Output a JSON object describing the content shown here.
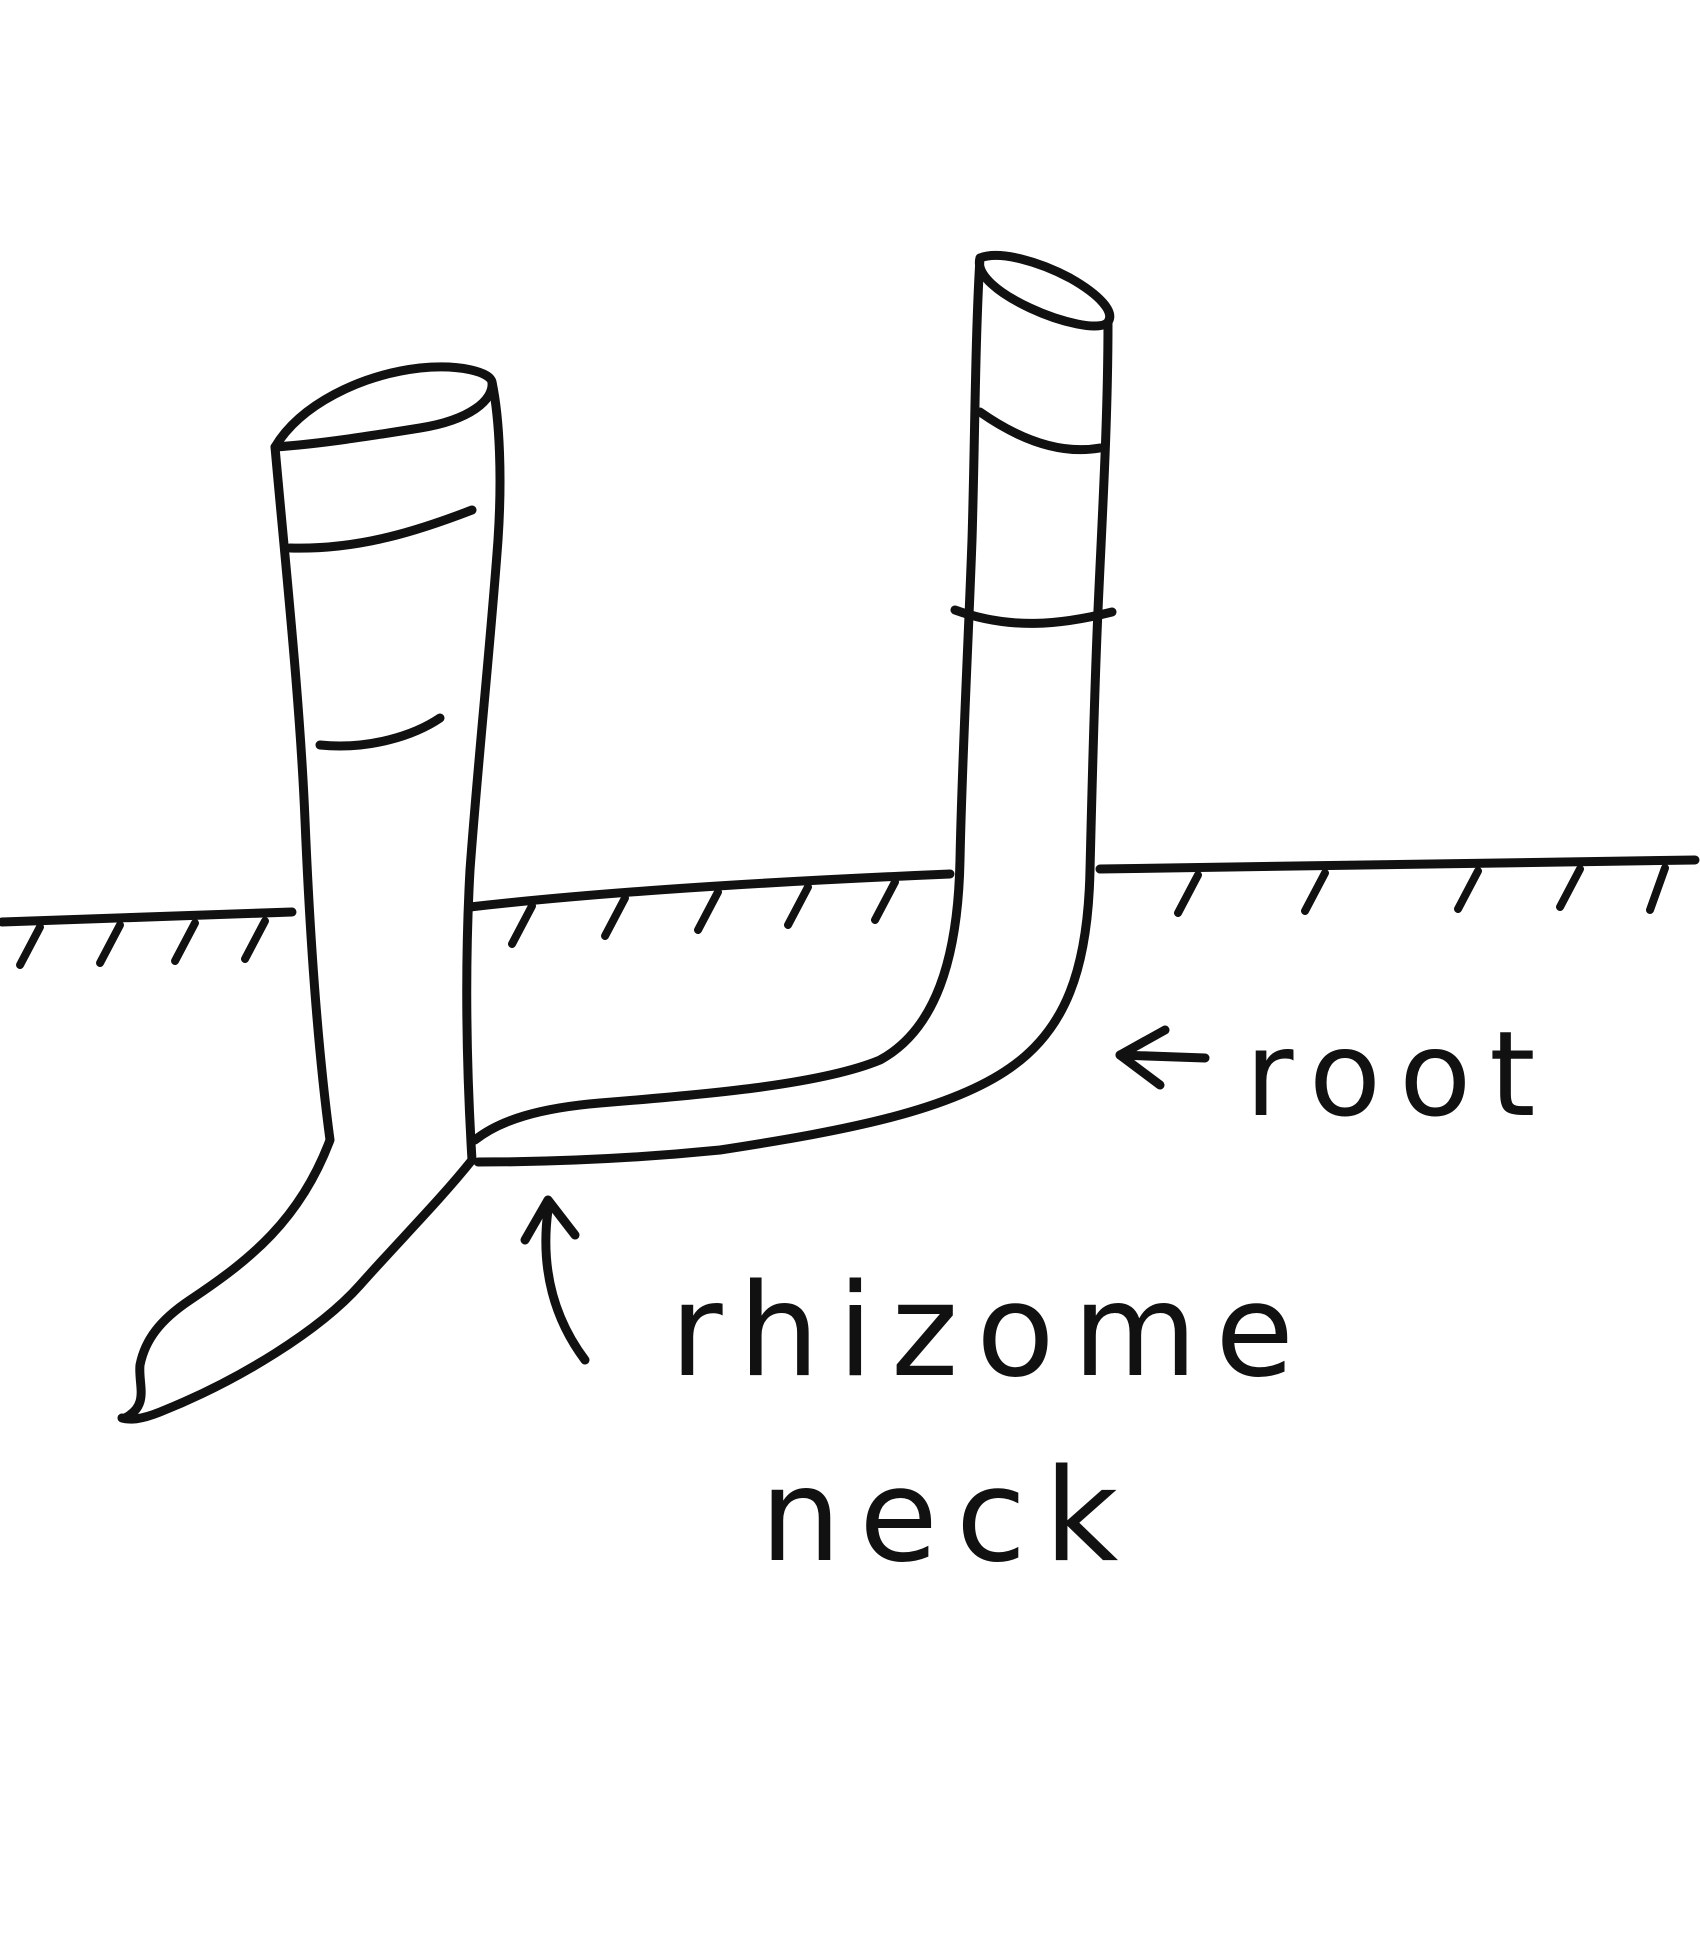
{
  "colors": {
    "ink": "#111111",
    "background": "#ffffff"
  },
  "labels": {
    "root": "root",
    "rhizome_line1": "rhizome",
    "rhizome_line2": "neck"
  }
}
